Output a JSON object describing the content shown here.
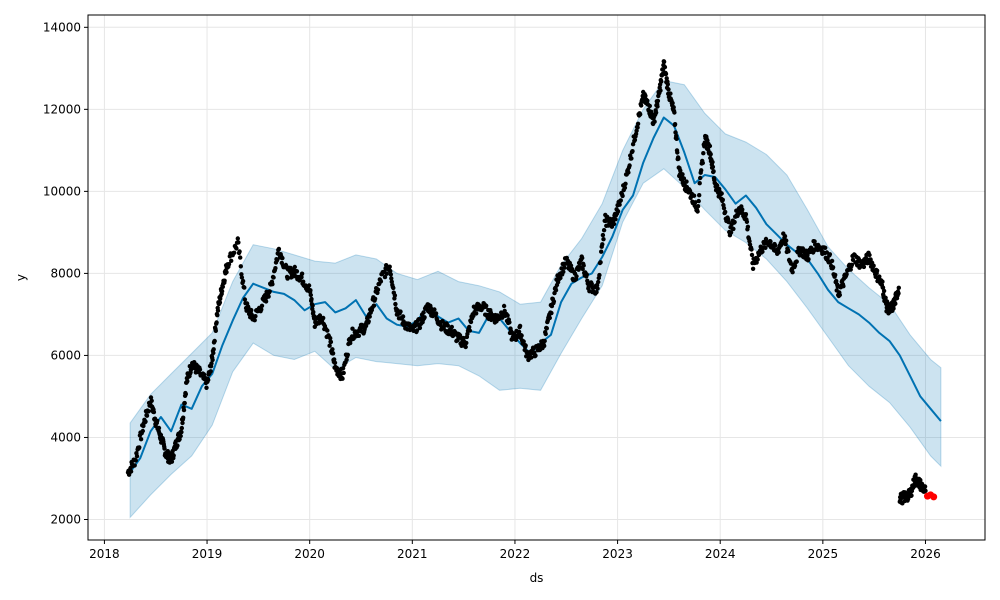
{
  "chart_data": {
    "type": "scatter",
    "title": "",
    "xlabel": "ds",
    "ylabel": "y",
    "xlim": [
      2017.84,
      2026.58
    ],
    "ylim": [
      1500,
      14300
    ],
    "x_ticks": [
      2018,
      2019,
      2020,
      2021,
      2022,
      2023,
      2024,
      2025,
      2026
    ],
    "x_tick_labels": [
      "2018",
      "2019",
      "2020",
      "2021",
      "2022",
      "2023",
      "2024",
      "2025",
      "2026"
    ],
    "y_ticks": [
      2000,
      4000,
      6000,
      8000,
      10000,
      12000,
      14000
    ],
    "y_tick_labels": [
      "2000",
      "4000",
      "6000",
      "8000",
      "10000",
      "12000",
      "14000"
    ],
    "grid": true,
    "colors": {
      "observed": "#000000",
      "forecast": "#0072B2",
      "band_fill": "#0072B2",
      "band_opacity": 0.2,
      "highlight": "#ff0000",
      "grid": "#e6e6e6"
    },
    "forecast_line": {
      "x": [
        2018.25,
        2018.35,
        2018.45,
        2018.55,
        2018.65,
        2018.75,
        2018.85,
        2018.95,
        2019.05,
        2019.15,
        2019.25,
        2019.35,
        2019.45,
        2019.55,
        2019.65,
        2019.75,
        2019.85,
        2019.95,
        2020.05,
        2020.15,
        2020.25,
        2020.35,
        2020.45,
        2020.55,
        2020.65,
        2020.75,
        2020.85,
        2020.95,
        2021.05,
        2021.15,
        2021.25,
        2021.35,
        2021.45,
        2021.55,
        2021.65,
        2021.75,
        2021.85,
        2021.95,
        2022.05,
        2022.15,
        2022.25,
        2022.35,
        2022.45,
        2022.55,
        2022.65,
        2022.75,
        2022.85,
        2022.95,
        2023.05,
        2023.15,
        2023.25,
        2023.35,
        2023.45,
        2023.55,
        2023.65,
        2023.75,
        2023.85,
        2023.95,
        2024.05,
        2024.15,
        2024.25,
        2024.35,
        2024.45,
        2024.55,
        2024.65,
        2024.75,
        2024.85,
        2024.95,
        2025.05,
        2025.15,
        2025.25,
        2025.35,
        2025.45,
        2025.55,
        2025.65,
        2025.75,
        2025.85,
        2025.95,
        2026.05,
        2026.15
      ],
      "y": [
        3150,
        3500,
        4150,
        4500,
        4150,
        4800,
        4700,
        5250,
        5550,
        6250,
        6850,
        7400,
        7750,
        7650,
        7550,
        7500,
        7350,
        7100,
        7250,
        7300,
        7050,
        7150,
        7350,
        6950,
        7250,
        6900,
        6750,
        6700,
        6850,
        7200,
        6950,
        6800,
        6900,
        6600,
        6550,
        7000,
        6900,
        6600,
        6300,
        6050,
        6300,
        6500,
        7300,
        7750,
        7900,
        8000,
        8400,
        8900,
        9550,
        9900,
        10700,
        11300,
        11800,
        11600,
        10950,
        10200,
        10400,
        10350,
        10050,
        9700,
        9900,
        9600,
        9200,
        8950,
        8700,
        8500,
        8350,
        8000,
        7600,
        7300,
        7150,
        7000,
        6800,
        6550,
        6350,
        6000,
        5500,
        5000,
        4700,
        4400
      ]
    },
    "band": {
      "x": [
        2018.25,
        2018.45,
        2018.65,
        2018.85,
        2019.05,
        2019.25,
        2019.45,
        2019.65,
        2019.85,
        2020.05,
        2020.25,
        2020.45,
        2020.65,
        2020.85,
        2021.05,
        2021.25,
        2021.45,
        2021.65,
        2021.85,
        2022.05,
        2022.25,
        2022.45,
        2022.65,
        2022.85,
        2023.05,
        2023.25,
        2023.45,
        2023.65,
        2023.85,
        2024.05,
        2024.25,
        2024.45,
        2024.65,
        2024.85,
        2025.05,
        2025.25,
        2025.45,
        2025.65,
        2025.85,
        2026.05,
        2026.15
      ],
      "upper": [
        4350,
        5050,
        5550,
        6050,
        6550,
        7800,
        8700,
        8600,
        8450,
        8300,
        8250,
        8450,
        8350,
        8000,
        7850,
        8050,
        7800,
        7700,
        7550,
        7250,
        7300,
        8200,
        8850,
        9700,
        11000,
        12000,
        12700,
        12600,
        11900,
        11400,
        11200,
        10900,
        10400,
        9550,
        8650,
        8100,
        7650,
        7250,
        6500,
        5900,
        5700
      ],
      "lower": [
        2050,
        2600,
        3100,
        3550,
        4300,
        5600,
        6300,
        6000,
        5900,
        6100,
        5650,
        5950,
        5850,
        5800,
        5750,
        5800,
        5750,
        5500,
        5150,
        5200,
        5150,
        6050,
        6900,
        7700,
        9250,
        10200,
        10550,
        10100,
        9550,
        9050,
        8750,
        8350,
        7800,
        7150,
        6450,
        5750,
        5250,
        4850,
        4250,
        3550,
        3300
      ]
    },
    "observed": {
      "segments": [
        {
          "x": [
            2018.23,
            2018.3,
            2018.38,
            2018.45,
            2018.5,
            2018.55,
            2018.6,
            2018.65,
            2018.7,
            2018.75,
            2018.8,
            2018.85,
            2018.92,
            2019.0,
            2019.05,
            2019.1,
            2019.15,
            2019.2,
            2019.3,
            2019.38,
            2019.45,
            2019.55,
            2019.62,
            2019.7,
            2019.78,
            2019.85,
            2019.92,
            2020.0,
            2020.05,
            2020.12,
            2020.2,
            2020.25,
            2020.32,
            2020.4,
            2020.48,
            2020.55,
            2020.62,
            2020.7,
            2020.78,
            2020.85,
            2020.92,
            2021.0,
            2021.08,
            2021.15,
            2021.22,
            2021.3,
            2021.38,
            2021.45,
            2021.52,
            2021.6,
            2021.68,
            2021.75,
            2021.82,
            2021.9,
            2021.98,
            2022.05,
            2022.12,
            2022.2,
            2022.28,
            2022.35,
            2022.42,
            2022.5,
            2022.58,
            2022.65,
            2022.72,
            2022.8,
            2022.88,
            2022.95,
            2023.02,
            2023.1,
            2023.18,
            2023.25,
            2023.3,
            2023.35,
            2023.4,
            2023.45,
            2023.5,
            2023.55,
            2023.6,
            2023.65,
            2023.7,
            2023.78,
            2023.85,
            2023.9,
            2023.95,
            2024.02,
            2024.1,
            2024.18,
            2024.25,
            2024.32,
            2024.4,
            2024.48,
            2024.55,
            2024.62,
            2024.7,
            2024.78,
            2024.85,
            2024.92,
            2025.0,
            2025.08,
            2025.15,
            2025.22,
            2025.3,
            2025.38,
            2025.45,
            2025.52,
            2025.58,
            2025.62,
            2025.66,
            2025.7,
            2025.74
          ],
          "y": [
            3150,
            3450,
            4300,
            4900,
            4400,
            4000,
            3600,
            3450,
            3850,
            4200,
            5350,
            5800,
            5600,
            5300,
            5900,
            7050,
            7700,
            8250,
            8750,
            7200,
            6900,
            7300,
            7650,
            8600,
            8000,
            8050,
            7900,
            7600,
            6800,
            6950,
            6300,
            5700,
            5500,
            6500,
            6600,
            6700,
            7300,
            7900,
            8200,
            7100,
            6800,
            6600,
            6800,
            7200,
            7000,
            6700,
            6600,
            6400,
            6300,
            7100,
            7200,
            7000,
            6900,
            7100,
            6400,
            6600,
            6000,
            6100,
            6300,
            7100,
            7900,
            8300,
            7900,
            8300,
            7700,
            7600,
            9300,
            9200,
            9700,
            10500,
            11500,
            12300,
            12100,
            11700,
            12300,
            13100,
            12400,
            11900,
            10500,
            10200,
            10000,
            9600,
            11300,
            11000,
            10200,
            9800,
            9000,
            9600,
            9400,
            8200,
            8600,
            8800,
            8500,
            8900,
            8100,
            8600,
            8400,
            8700,
            8600,
            8300,
            7500,
            7900,
            8400,
            8200,
            8400,
            8000,
            7700,
            7200,
            7100,
            7300,
            7650
          ]
        },
        {
          "x": [
            2025.75,
            2025.8,
            2025.85,
            2025.9,
            2025.95,
            2026.0
          ],
          "y": [
            2500,
            2550,
            2600,
            3000,
            2850,
            2700
          ]
        }
      ],
      "highlight": {
        "x": [
          2026.02,
          2026.05,
          2026.08
        ],
        "y": [
          2570,
          2600,
          2550
        ]
      }
    }
  }
}
